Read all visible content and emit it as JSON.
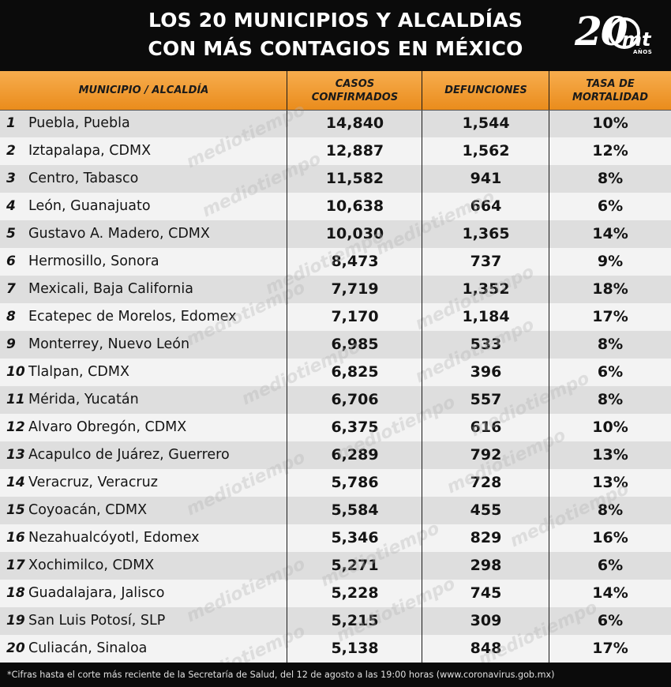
{
  "title": {
    "line1": "LOS 20 MUNICIPIOS Y ALCALDÍAS",
    "line2": "CON MÁS CONTAGIOS EN MÉXICO"
  },
  "logo": {
    "number": "20",
    "brand": "mt",
    "sub": "AÑOS"
  },
  "watermark": "mediotiempo",
  "colors": {
    "header_orange": "#f29f36",
    "top_bar": "#0b0b0b",
    "row_dark": "#dedede",
    "row_light": "#f4f4f4"
  },
  "chart_data": {
    "type": "table",
    "title": "LOS 20 MUNICIPIOS Y ALCALDÍAS CON MÁS CONTAGIOS EN MÉXICO",
    "columns": [
      {
        "line1": "MUNICIPIO / ALCALDÍA",
        "line2": ""
      },
      {
        "line1": "CASOS",
        "line2": "CONFIRMADOS"
      },
      {
        "line1": "DEFUNCIONES",
        "line2": ""
      },
      {
        "line1": "TASA DE",
        "line2": "MORTALIDAD"
      }
    ],
    "rows": [
      {
        "rank": "1",
        "name": "Puebla, Puebla",
        "casos": "14,840",
        "defunciones": "1,544",
        "tasa": "10%"
      },
      {
        "rank": "2",
        "name": "Iztapalapa, CDMX",
        "casos": "12,887",
        "defunciones": "1,562",
        "tasa": "12%"
      },
      {
        "rank": "3",
        "name": "Centro, Tabasco",
        "casos": "11,582",
        "defunciones": "941",
        "tasa": "8%"
      },
      {
        "rank": "4",
        "name": "León, Guanajuato",
        "casos": "10,638",
        "defunciones": "664",
        "tasa": "6%"
      },
      {
        "rank": "5",
        "name": "Gustavo A. Madero, CDMX",
        "casos": "10,030",
        "defunciones": "1,365",
        "tasa": "14%"
      },
      {
        "rank": "6",
        "name": "Hermosillo, Sonora",
        "casos": "8,473",
        "defunciones": "737",
        "tasa": "9%"
      },
      {
        "rank": "7",
        "name": "Mexicali, Baja California",
        "casos": "7,719",
        "defunciones": "1,352",
        "tasa": "18%"
      },
      {
        "rank": "8",
        "name": "Ecatepec de Morelos, Edomex",
        "casos": "7,170",
        "defunciones": "1,184",
        "tasa": "17%"
      },
      {
        "rank": "9",
        "name": "Monterrey, Nuevo León",
        "casos": "6,985",
        "defunciones": "533",
        "tasa": "8%"
      },
      {
        "rank": "10",
        "name": "Tlalpan, CDMX",
        "casos": "6,825",
        "defunciones": "396",
        "tasa": "6%"
      },
      {
        "rank": "11",
        "name": "Mérida, Yucatán",
        "casos": "6,706",
        "defunciones": "557",
        "tasa": "8%"
      },
      {
        "rank": "12",
        "name": "Alvaro Obregón, CDMX",
        "casos": "6,375",
        "defunciones": "616",
        "tasa": "10%"
      },
      {
        "rank": "13",
        "name": "Acapulco de Juárez, Guerrero",
        "casos": "6,289",
        "defunciones": "792",
        "tasa": "13%"
      },
      {
        "rank": "14",
        "name": "Veracruz, Veracruz",
        "casos": "5,786",
        "defunciones": "728",
        "tasa": "13%"
      },
      {
        "rank": "15",
        "name": "Coyoacán, CDMX",
        "casos": "5,584",
        "defunciones": "455",
        "tasa": "8%"
      },
      {
        "rank": "16",
        "name": "Nezahualcóyotl, Edomex",
        "casos": "5,346",
        "defunciones": "829",
        "tasa": "16%"
      },
      {
        "rank": "17",
        "name": "Xochimilco, CDMX",
        "casos": "5,271",
        "defunciones": "298",
        "tasa": "6%"
      },
      {
        "rank": "18",
        "name": "Guadalajara, Jalisco",
        "casos": "5,228",
        "defunciones": "745",
        "tasa": "14%"
      },
      {
        "rank": "19",
        "name": "San Luis Potosí, SLP",
        "casos": "5,215",
        "defunciones": "309",
        "tasa": "6%"
      },
      {
        "rank": "20",
        "name": "Culiacán, Sinaloa",
        "casos": "5,138",
        "defunciones": "848",
        "tasa": "17%"
      }
    ]
  },
  "footnote": "*Cifras hasta el corte más reciente de la Secretaría de Salud, del 12 de agosto a las 19:00 horas (www.coronavirus.gob.mx)"
}
